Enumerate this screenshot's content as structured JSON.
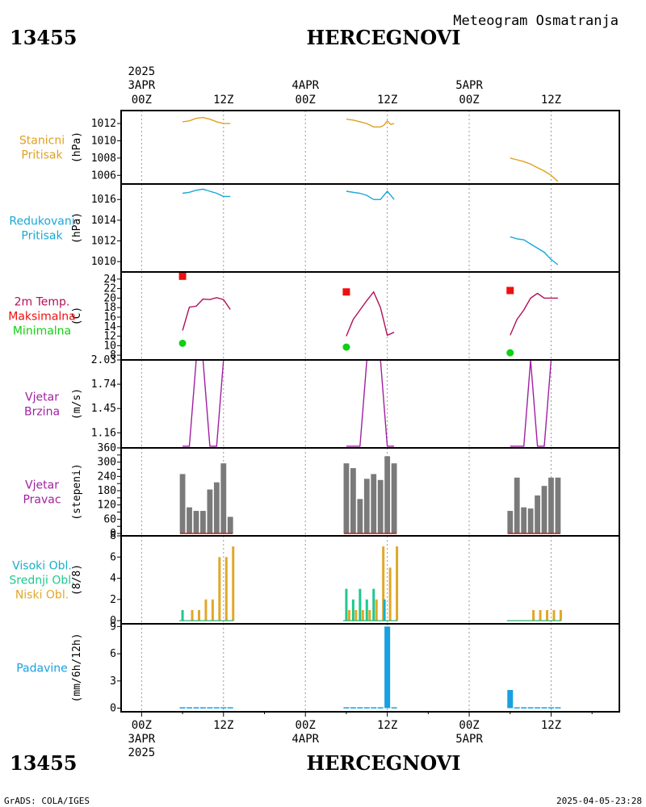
{
  "header": {
    "subtitle": "Meteogram Osmatranja",
    "station_id": "13455",
    "station_name": "HERCEGNOVI"
  },
  "footer": {
    "station_id": "13455",
    "station_name": "HERCEGNOVI",
    "left_note": "GrADS: COLA/IGES",
    "right_note": "2025-04-05-23:28"
  },
  "time_axis": {
    "year_label": "2025",
    "ticks": [
      {
        "hour": 0,
        "day": "3APR",
        "time": "00Z",
        "show_day": true,
        "show_year": true
      },
      {
        "hour": 12,
        "day": "",
        "time": "12Z",
        "show_day": false,
        "show_year": false
      },
      {
        "hour": 24,
        "day": "4APR",
        "time": "00Z",
        "show_day": true,
        "show_year": false
      },
      {
        "hour": 36,
        "day": "",
        "time": "12Z",
        "show_day": false,
        "show_year": false
      },
      {
        "hour": 48,
        "day": "5APR",
        "time": "00Z",
        "show_day": true,
        "show_year": false
      },
      {
        "hour": 60,
        "day": "",
        "time": "12Z",
        "show_day": false,
        "show_year": false
      }
    ],
    "xlim": [
      -3,
      70
    ]
  },
  "chart_data": [
    {
      "panel": "station-pressure",
      "type": "line",
      "labels": [
        "Stanicni",
        "Pritisak"
      ],
      "ylabel": "(hPa)",
      "ylim": [
        1005,
        1013.5
      ],
      "yticks": [
        "1006",
        "1008",
        "1010",
        "1012"
      ],
      "ytick_values": [
        1006,
        1008,
        1010,
        1012
      ],
      "colors": {
        "line": "#e0a020"
      },
      "segments": [
        {
          "x": [
            6,
            7,
            8,
            9,
            10,
            11,
            12,
            13
          ],
          "y": [
            1012.2,
            1012.3,
            1012.6,
            1012.7,
            1012.5,
            1012.2,
            1012.0,
            1012.0
          ]
        },
        {
          "x": [
            30,
            31,
            32,
            33,
            34,
            35,
            35.5,
            36,
            36.5,
            37
          ],
          "y": [
            1012.5,
            1012.4,
            1012.2,
            1012.0,
            1011.6,
            1011.6,
            1011.8,
            1012.3,
            1011.9,
            1012.0
          ]
        },
        {
          "x": [
            54,
            55,
            56,
            57,
            58,
            59,
            60,
            61
          ],
          "y": [
            1008.0,
            1007.8,
            1007.6,
            1007.3,
            1006.9,
            1006.5,
            1006.0,
            1005.3
          ]
        }
      ]
    },
    {
      "panel": "reduced-pressure",
      "type": "line",
      "labels": [
        "Redukovani",
        "Pritisak"
      ],
      "ylabel": "(hPa)",
      "ylim": [
        1009,
        1017.5
      ],
      "yticks": [
        "1010",
        "1012",
        "1014",
        "1016"
      ],
      "ytick_values": [
        1010,
        1012,
        1014,
        1016
      ],
      "colors": {
        "line": "#18a8d8"
      },
      "segments": [
        {
          "x": [
            6,
            7,
            8,
            9,
            10,
            11,
            12,
            13
          ],
          "y": [
            1016.6,
            1016.7,
            1016.9,
            1017.0,
            1016.8,
            1016.6,
            1016.3,
            1016.3
          ]
        },
        {
          "x": [
            30,
            31,
            32,
            33,
            34,
            35,
            35.5,
            36,
            36.5,
            37
          ],
          "y": [
            1016.8,
            1016.7,
            1016.6,
            1016.4,
            1016.0,
            1016.0,
            1016.4,
            1016.8,
            1016.4,
            1016.0
          ]
        },
        {
          "x": [
            54,
            55,
            56,
            57,
            58,
            59,
            60,
            61
          ],
          "y": [
            1012.4,
            1012.2,
            1012.1,
            1011.7,
            1011.3,
            1010.9,
            1010.2,
            1009.7
          ]
        }
      ]
    },
    {
      "panel": "temperature",
      "type": "line",
      "labels": [
        "2m Temp.",
        "Maksimalna",
        "Minimalna"
      ],
      "ylabel": "(C)",
      "ylim": [
        7,
        25.5
      ],
      "yticks": [
        "8",
        "10",
        "12",
        "14",
        "16",
        "18",
        "20",
        "22",
        "24"
      ],
      "ytick_values": [
        8,
        10,
        12,
        14,
        16,
        18,
        20,
        22,
        24
      ],
      "colors": {
        "line": "#b0105a",
        "max": "#ee1010",
        "min": "#10d010"
      },
      "segments": [
        {
          "x": [
            6,
            7,
            8,
            9,
            10,
            11,
            12,
            13
          ],
          "y": [
            13.2,
            18.1,
            18.3,
            19.8,
            19.7,
            20.1,
            19.7,
            17.6
          ]
        },
        {
          "x": [
            30,
            31,
            32,
            33,
            34,
            35,
            36,
            37
          ],
          "y": [
            12.0,
            15.5,
            17.5,
            19.5,
            21.3,
            18.0,
            12.2,
            12.8
          ]
        },
        {
          "x": [
            54,
            55,
            56,
            57,
            58,
            59,
            60,
            61
          ],
          "y": [
            12.2,
            15.5,
            17.5,
            20.0,
            21.0,
            20.0,
            20.0,
            20.0
          ]
        }
      ],
      "max_points": {
        "x": [
          6,
          30,
          54
        ],
        "y": [
          24.6,
          21.3,
          21.6
        ]
      },
      "min_points": {
        "x": [
          6,
          30,
          54
        ],
        "y": [
          10.5,
          9.7,
          8.5
        ]
      }
    },
    {
      "panel": "wind-speed",
      "type": "line",
      "labels": [
        "Vjetar",
        "Brzina"
      ],
      "ylabel": "(m/s)",
      "ylim": [
        0.98,
        2.03
      ],
      "yticks": [
        "1.16",
        "1.45",
        "1.74",
        "2.03"
      ],
      "ytick_values": [
        1.16,
        1.45,
        1.74,
        2.03
      ],
      "colors": {
        "line": "#a020a0"
      },
      "segments": [
        {
          "x": [
            6,
            7,
            8,
            9,
            10,
            11,
            12,
            13
          ],
          "y": [
            1.0,
            1.0,
            2.03,
            2.03,
            1.0,
            1.0,
            2.03,
            2.03
          ]
        },
        {
          "x": [
            30,
            31,
            32,
            33,
            34,
            35,
            36,
            37
          ],
          "y": [
            1.0,
            1.0,
            1.0,
            2.03,
            2.03,
            2.03,
            1.0,
            1.0
          ]
        },
        {
          "x": [
            54,
            55,
            56,
            57,
            58,
            59,
            60,
            61
          ],
          "y": [
            1.0,
            1.0,
            1.0,
            2.03,
            1.0,
            1.0,
            2.03,
            2.03
          ]
        }
      ]
    },
    {
      "panel": "wind-direction",
      "type": "bar",
      "labels": [
        "Vjetar",
        "Pravac"
      ],
      "ylabel": "(stepeni)",
      "ylim": [
        -10,
        360
      ],
      "yticks": [
        "0",
        "60",
        "120",
        "180",
        "240",
        "300",
        "360"
      ],
      "ytick_values": [
        0,
        60,
        120,
        180,
        240,
        300,
        360
      ],
      "tick_marks": [
        0,
        30,
        60,
        90,
        120,
        150,
        180,
        210,
        240,
        270,
        300,
        330,
        360
      ],
      "colors": {
        "bar": "#7a7a7a",
        "base": "#c02020"
      },
      "x": [
        6,
        7,
        8,
        9,
        10,
        11,
        12,
        13,
        30,
        31,
        32,
        33,
        34,
        35,
        36,
        37,
        54,
        55,
        56,
        57,
        58,
        59,
        60,
        61
      ],
      "values": [
        250,
        110,
        95,
        95,
        185,
        215,
        295,
        70,
        295,
        275,
        145,
        230,
        250,
        225,
        325,
        295,
        95,
        235,
        110,
        105,
        160,
        200,
        235,
        235
      ]
    },
    {
      "panel": "clouds",
      "type": "bar",
      "labels": [
        "Visoki Obl.",
        "Srednji Obl.",
        "Niski Obl."
      ],
      "ylabel": "(8/8)",
      "ylim": [
        -0.3,
        8
      ],
      "yticks": [
        "0",
        "2",
        "4",
        "6",
        "8"
      ],
      "ytick_values": [
        0,
        2,
        4,
        6,
        8
      ],
      "colors": {
        "high": "#18b0c8",
        "mid": "#20c890",
        "low": "#e0a828"
      },
      "x": [
        6,
        7,
        8,
        9,
        10,
        11,
        12,
        13,
        30,
        31,
        32,
        33,
        34,
        35,
        36,
        37,
        54,
        55,
        56,
        57,
        58,
        59,
        60,
        61
      ],
      "series": [
        {
          "name": "Visoki Obl.",
          "values": [
            0,
            0,
            0,
            0,
            0,
            0,
            0,
            0,
            0,
            0,
            0,
            0,
            0,
            0,
            2,
            0,
            0,
            0,
            0,
            0,
            0,
            0,
            0,
            0
          ]
        },
        {
          "name": "Srednji Obl.",
          "values": [
            1,
            0,
            0,
            0,
            0,
            0,
            0,
            0,
            3,
            2,
            3,
            2,
            3,
            0,
            0,
            0,
            0,
            0,
            0,
            0,
            0,
            0,
            0,
            0
          ]
        },
        {
          "name": "Niski Obl.",
          "values": [
            0,
            1,
            1,
            2,
            2,
            6,
            6,
            7,
            1,
            1,
            1,
            1,
            2,
            7,
            5,
            7,
            0,
            0,
            0,
            1,
            1,
            1,
            1,
            1
          ]
        }
      ]
    },
    {
      "panel": "precipitation",
      "type": "bar",
      "labels": [
        "Padavine"
      ],
      "ylabel": "(mm/6h/12h)",
      "ylim": [
        -0.4,
        9.3
      ],
      "yticks": [
        "0",
        "3",
        "6",
        "9"
      ],
      "ytick_values": [
        0,
        3,
        6,
        9
      ],
      "colors": {
        "bar": "#18a0e0"
      },
      "x": [
        6,
        7,
        8,
        9,
        10,
        11,
        12,
        13,
        30,
        31,
        32,
        33,
        34,
        35,
        36,
        37,
        54,
        55,
        56,
        57,
        58,
        59,
        60,
        61
      ],
      "values": [
        0.1,
        0.1,
        0.1,
        0.1,
        0.1,
        0.1,
        0.1,
        0.1,
        0.1,
        0.1,
        0.1,
        0.1,
        0.1,
        0.1,
        9.0,
        0.1,
        2.0,
        0.1,
        0.1,
        0.1,
        0.1,
        0.1,
        0.1,
        0.1
      ]
    }
  ]
}
